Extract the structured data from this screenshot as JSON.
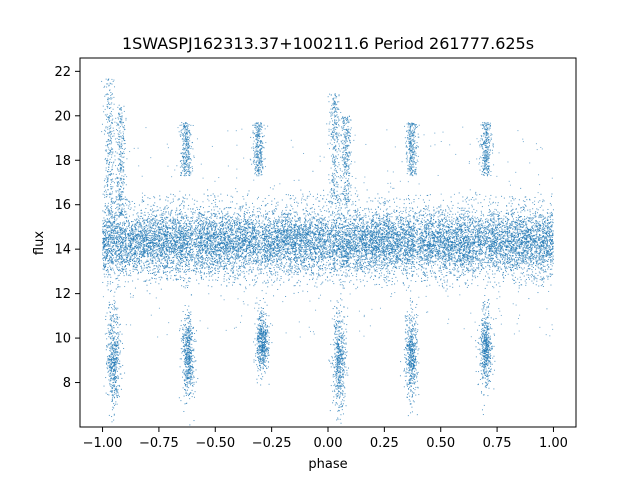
{
  "chart_data": {
    "type": "scatter",
    "title": "1SWASPJ162313.37+100211.6 Period 261777.625s",
    "xlabel": "phase",
    "ylabel": "flux",
    "xlim": [
      -1.1,
      1.1
    ],
    "ylim": [
      6.0,
      22.6
    ],
    "x_ticks": [
      -1.0,
      -0.75,
      -0.5,
      -0.25,
      0.0,
      0.25,
      0.5,
      0.75,
      1.0
    ],
    "x_tick_labels": [
      "−1.00",
      "−0.75",
      "−0.50",
      "−0.25",
      "0.00",
      "0.25",
      "0.50",
      "0.75",
      "1.00"
    ],
    "y_ticks": [
      8,
      10,
      12,
      14,
      16,
      18,
      20,
      22
    ],
    "y_tick_labels": [
      "8",
      "10",
      "12",
      "14",
      "16",
      "18",
      "20",
      "22"
    ],
    "grid": false,
    "point_color": "#1f77b4",
    "series": [
      {
        "x_range": [
          -1.0,
          1.0
        ],
        "baseline_flux": 14.3,
        "baseline_spread": 0.9,
        "baseline_outer_range": [
          12.3,
          16.5
        ],
        "gap_phases": [
          -0.6,
          -0.3,
          0.0,
          0.4,
          0.7
        ],
        "bright_clumps": [
          {
            "phase": -0.97,
            "flux_range": [
              15.0,
              21.7
            ]
          },
          {
            "phase": -0.92,
            "flux_range": [
              15.5,
              20.5
            ]
          },
          {
            "phase": -0.63,
            "flux_range": [
              17.3,
              19.7
            ]
          },
          {
            "phase": -0.31,
            "flux_range": [
              17.3,
              19.7
            ]
          },
          {
            "phase": 0.03,
            "flux_range": [
              16.0,
              21.0
            ]
          },
          {
            "phase": 0.08,
            "flux_range": [
              16.0,
              20.0
            ]
          },
          {
            "phase": 0.37,
            "flux_range": [
              17.3,
              19.7
            ]
          },
          {
            "phase": 0.7,
            "flux_range": [
              17.3,
              19.7
            ]
          }
        ],
        "dip_clumps": [
          {
            "phase": -0.95,
            "flux_range": [
              7.0,
              11.0
            ]
          },
          {
            "phase": -0.62,
            "flux_range": [
              7.5,
              11.0
            ]
          },
          {
            "phase": -0.29,
            "flux_range": [
              8.5,
              11.0
            ]
          },
          {
            "phase": 0.05,
            "flux_range": [
              7.0,
              11.0
            ]
          },
          {
            "phase": 0.37,
            "flux_range": [
              7.5,
              11.0
            ]
          },
          {
            "phase": 0.7,
            "flux_range": [
              8.0,
              11.0
            ]
          }
        ]
      }
    ]
  }
}
